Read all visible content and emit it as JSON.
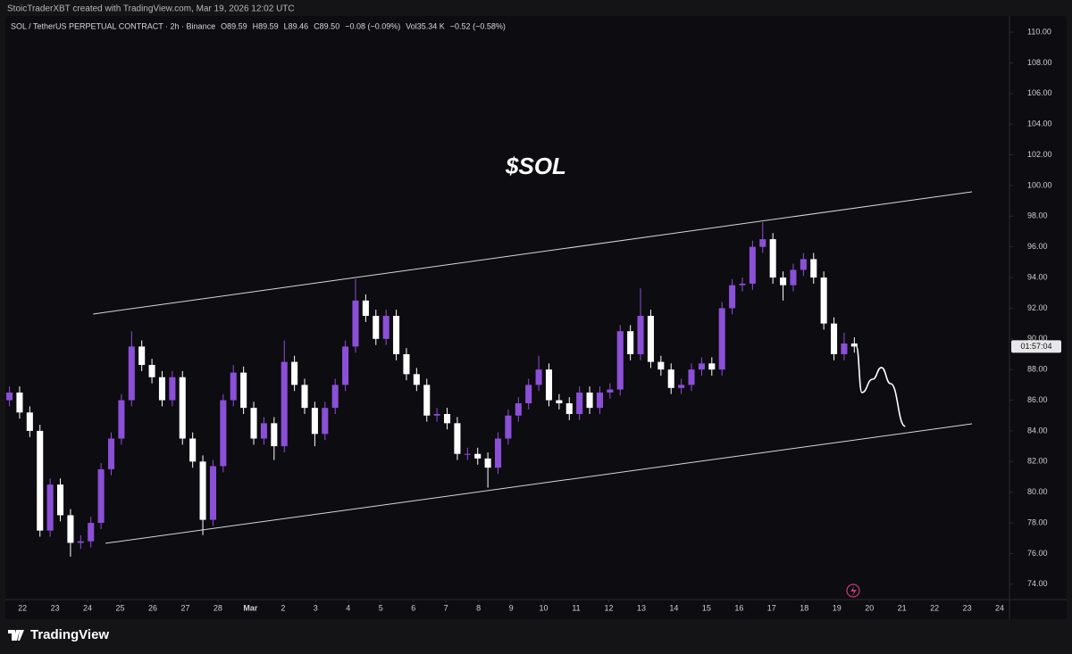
{
  "header": {
    "credit": "StoicTraderXBT created with TradingView.com, Mar 19, 2026 12:02 UTC",
    "symbol": "SOL / TetherUS PERPETUAL CONTRACT · 2h · Binance",
    "stats": [
      "O89.59",
      "H89.59",
      "L89.46",
      "C89.50",
      "−0.08 (−0.09%)",
      "Vol35.34 K",
      "−0.52 (−0.58%)"
    ],
    "countdown": "01:57:04",
    "brand": "TradingView"
  },
  "chart_data": {
    "type": "candlestick",
    "title": "$SOL",
    "grid": false,
    "log_scale": false,
    "up_color": "#8b4fd8",
    "down_color": "#ffffff",
    "line_color": "#d9d9d9",
    "xlim": [
      -0.47,
      30.3
    ],
    "ylim": [
      73.0,
      111.05
    ],
    "xticks": [
      {
        "value": 0,
        "label": "22"
      },
      {
        "value": 1,
        "label": "23"
      },
      {
        "value": 2,
        "label": "24"
      },
      {
        "value": 3,
        "label": "25"
      },
      {
        "value": 4,
        "label": "26"
      },
      {
        "value": 5,
        "label": "27"
      },
      {
        "value": 6,
        "label": "28"
      },
      {
        "value": 7,
        "label": "Mar"
      },
      {
        "value": 8,
        "label": "2"
      },
      {
        "value": 9,
        "label": "3"
      },
      {
        "value": 10,
        "label": "4"
      },
      {
        "value": 11,
        "label": "5"
      },
      {
        "value": 12,
        "label": "6"
      },
      {
        "value": 13,
        "label": "7"
      },
      {
        "value": 14,
        "label": "8"
      },
      {
        "value": 15,
        "label": "9"
      },
      {
        "value": 16,
        "label": "10"
      },
      {
        "value": 17,
        "label": "11"
      },
      {
        "value": 18,
        "label": "12"
      },
      {
        "value": 19,
        "label": "13"
      },
      {
        "value": 20,
        "label": "14"
      },
      {
        "value": 21,
        "label": "15"
      },
      {
        "value": 22,
        "label": "16"
      },
      {
        "value": 23,
        "label": "17"
      },
      {
        "value": 24,
        "label": "18"
      },
      {
        "value": 25,
        "label": "19"
      },
      {
        "value": 26,
        "label": "20"
      },
      {
        "value": 27,
        "label": "21"
      },
      {
        "value": 28,
        "label": "22"
      },
      {
        "value": 29,
        "label": "23"
      },
      {
        "value": 30,
        "label": "24"
      }
    ],
    "yticks": [
      {
        "value": 74,
        "label": "74.00"
      },
      {
        "value": 76,
        "label": "76.00"
      },
      {
        "value": 78,
        "label": "78.00"
      },
      {
        "value": 80,
        "label": "80.00"
      },
      {
        "value": 82,
        "label": "82.00"
      },
      {
        "value": 84,
        "label": "84.00"
      },
      {
        "value": 86,
        "label": "86.00"
      },
      {
        "value": 88,
        "label": "88.00"
      },
      {
        "value": 90,
        "label": "90.00"
      },
      {
        "value": 92,
        "label": "92.00"
      },
      {
        "value": 94,
        "label": "94.00"
      },
      {
        "value": 96,
        "label": "96.00"
      },
      {
        "value": 98,
        "label": "98.00"
      },
      {
        "value": 100,
        "label": "100.00"
      },
      {
        "value": 102,
        "label": "102.00"
      },
      {
        "value": 104,
        "label": "104.00"
      },
      {
        "value": 106,
        "label": "106.00"
      },
      {
        "value": 108,
        "label": "108.00"
      },
      {
        "value": 110,
        "label": "110.00"
      }
    ],
    "x": [
      -0.4,
      -0.0875,
      0.225,
      0.5375,
      0.85,
      1.1625,
      1.475,
      1.7875,
      2.1,
      2.4125,
      2.725,
      3.0375,
      3.35,
      3.6625,
      3.975,
      4.2875,
      4.6,
      4.9125,
      5.225,
      5.5375,
      5.85,
      6.1625,
      6.475,
      6.7875,
      7.1,
      7.4125,
      7.725,
      8.0375,
      8.35,
      8.6625,
      8.975,
      9.2875,
      9.6,
      9.9125,
      10.225,
      10.5375,
      10.85,
      11.1625,
      11.475,
      11.7875,
      12.1,
      12.4125,
      12.725,
      13.0375,
      13.35,
      13.6625,
      13.975,
      14.2875,
      14.6,
      14.9125,
      15.225,
      15.5375,
      15.85,
      16.1625,
      16.475,
      16.7875,
      17.1,
      17.4125,
      17.725,
      18.0375,
      18.35,
      18.6625,
      18.975,
      19.2875,
      19.6,
      19.9125,
      20.225,
      20.5375,
      20.85,
      21.1625,
      21.475,
      21.7875,
      22.1,
      22.4125,
      22.725,
      23.0375,
      23.35,
      23.6625,
      23.975,
      24.2875,
      24.6,
      24.9125,
      25.225,
      25.5375
    ],
    "open": [
      86.0,
      86.5,
      85.2,
      84.0,
      77.5,
      80.5,
      78.5,
      76.7,
      76.8,
      78.0,
      81.5,
      83.5,
      86.0,
      89.5,
      88.3,
      87.5,
      86.0,
      87.5,
      83.5,
      82.0,
      78.2,
      81.7,
      86.0,
      87.8,
      85.5,
      83.5,
      84.5,
      83.0,
      88.5,
      87.0,
      85.5,
      83.8,
      85.5,
      87.0,
      89.5,
      92.5,
      91.5,
      90.0,
      91.5,
      89.0,
      87.7,
      87.0,
      85.0,
      85.1,
      84.5,
      82.5,
      82.5,
      82.2,
      81.6,
      83.5,
      85.0,
      85.8,
      87.0,
      88.0,
      86.0,
      85.8,
      85.1,
      86.5,
      85.5,
      86.5,
      86.7,
      90.5,
      89.0,
      91.5,
      88.5,
      88.0,
      86.8,
      87.0,
      88.0,
      88.4,
      88.0,
      92.0,
      93.5,
      93.6,
      96.0,
      96.5,
      94.0,
      93.5,
      94.5,
      95.2,
      94.0,
      91.0,
      89.0,
      89.7
    ],
    "high": [
      86.9,
      86.9,
      85.6,
      84.4,
      80.9,
      80.9,
      78.9,
      77.2,
      78.4,
      81.9,
      83.9,
      86.4,
      90.5,
      89.9,
      88.7,
      87.9,
      87.9,
      87.9,
      83.9,
      82.4,
      82.1,
      86.4,
      88.3,
      88.2,
      85.9,
      84.9,
      84.9,
      89.9,
      88.9,
      87.4,
      85.9,
      85.9,
      87.4,
      89.9,
      93.9,
      92.9,
      91.9,
      91.9,
      91.9,
      89.4,
      88.1,
      87.4,
      85.5,
      85.5,
      84.9,
      82.9,
      82.9,
      82.6,
      83.9,
      85.4,
      86.2,
      87.4,
      88.9,
      88.4,
      86.4,
      86.2,
      86.9,
      86.9,
      86.9,
      87.1,
      90.9,
      90.9,
      93.3,
      91.9,
      88.9,
      88.4,
      87.4,
      88.4,
      88.8,
      88.8,
      92.4,
      93.9,
      94.0,
      96.4,
      97.6,
      96.9,
      94.4,
      94.9,
      95.6,
      95.6,
      94.4,
      91.4,
      90.4,
      90.1
    ],
    "low": [
      85.6,
      84.8,
      83.6,
      77.1,
      77.1,
      78.1,
      75.8,
      76.3,
      76.4,
      77.6,
      81.1,
      83.1,
      85.6,
      87.9,
      87.1,
      85.6,
      85.6,
      83.1,
      81.6,
      77.2,
      77.8,
      81.3,
      85.6,
      85.1,
      83.1,
      83.1,
      82.1,
      82.6,
      86.6,
      85.1,
      83.0,
      83.4,
      85.1,
      86.6,
      89.1,
      91.1,
      89.6,
      89.6,
      88.6,
      87.3,
      86.6,
      84.6,
      84.6,
      84.1,
      82.1,
      82.1,
      81.8,
      80.3,
      81.2,
      83.1,
      84.6,
      85.4,
      86.6,
      85.6,
      85.4,
      84.7,
      84.7,
      85.1,
      85.1,
      86.1,
      86.3,
      88.6,
      88.6,
      88.1,
      87.6,
      86.4,
      86.4,
      86.6,
      87.6,
      87.6,
      87.6,
      91.6,
      93.1,
      93.2,
      95.6,
      93.6,
      92.5,
      93.1,
      94.1,
      93.6,
      90.6,
      88.6,
      88.6,
      89.1
    ],
    "close": [
      86.5,
      85.2,
      84.0,
      77.5,
      80.5,
      78.5,
      76.7,
      76.8,
      78.0,
      81.5,
      83.5,
      86.0,
      89.5,
      88.3,
      87.5,
      86.0,
      87.5,
      83.5,
      82.0,
      78.2,
      81.7,
      86.0,
      87.8,
      85.5,
      83.5,
      84.5,
      83.0,
      88.5,
      87.0,
      85.5,
      83.8,
      85.5,
      87.0,
      89.5,
      92.5,
      91.5,
      90.0,
      91.5,
      89.0,
      87.7,
      87.0,
      85.0,
      85.1,
      84.5,
      82.5,
      82.5,
      82.2,
      81.6,
      83.5,
      85.0,
      85.8,
      87.0,
      88.0,
      86.0,
      85.8,
      85.1,
      86.5,
      85.5,
      86.5,
      86.7,
      90.5,
      89.0,
      91.5,
      88.5,
      88.0,
      86.8,
      87.0,
      88.0,
      88.4,
      88.0,
      92.0,
      93.5,
      93.6,
      96.0,
      96.5,
      94.0,
      93.5,
      94.5,
      95.2,
      94.0,
      91.0,
      89.0,
      89.7,
      89.5
    ],
    "trendlines": [
      {
        "x": [
          2.17,
          29.15
        ],
        "y": [
          91.62,
          99.59
        ]
      },
      {
        "x": [
          2.55,
          29.15
        ],
        "y": [
          76.67,
          84.46
        ]
      }
    ],
    "projection": {
      "x": [
        25.6,
        25.77,
        26.1,
        26.37,
        26.65,
        27.1
      ],
      "y": [
        89.5,
        86.5,
        87.37,
        88.13,
        87.08,
        84.3
      ]
    }
  }
}
